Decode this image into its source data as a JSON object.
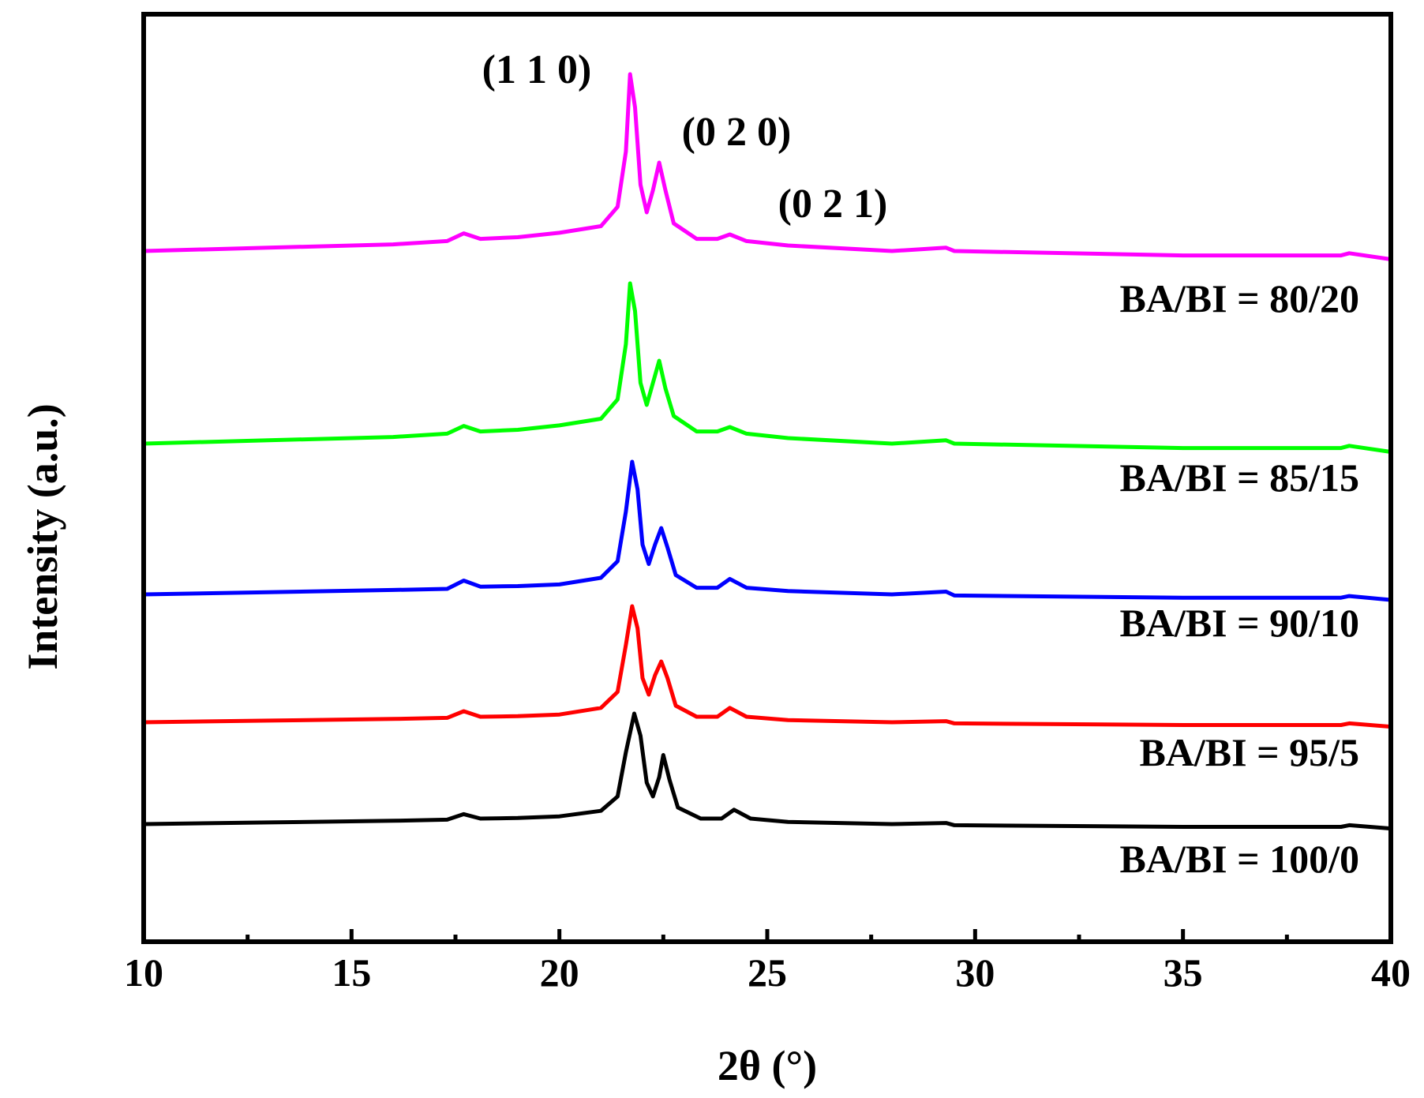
{
  "chart_data": {
    "type": "line",
    "title": "",
    "xlabel": "2θ (°)",
    "ylabel": "Intensity (a.u.)",
    "xlim": [
      10,
      40
    ],
    "xticks": [
      "10",
      "15",
      "20",
      "25",
      "30",
      "35",
      "40"
    ],
    "minor_xticks": [
      12.5,
      17.5,
      22.5,
      27.5,
      32.5,
      37.5
    ],
    "y_ticks_shown": false,
    "grid": false,
    "legend": "none (series labelled inline on the right)",
    "annotations": [
      {
        "text": "(1 1 0)",
        "x": 21.7
      },
      {
        "text": "(0 2 0)",
        "x": 22.4
      },
      {
        "text": "(0 2 1)",
        "x": 24.1
      }
    ],
    "series": [
      {
        "name": "BA/BI = 80/20",
        "color": "#ff00ff",
        "points": [
          [
            10,
            0.0
          ],
          [
            13,
            0.06
          ],
          [
            16,
            0.12
          ],
          [
            17.3,
            0.18
          ],
          [
            17.7,
            0.32
          ],
          [
            18.1,
            0.22
          ],
          [
            19,
            0.25
          ],
          [
            20,
            0.33
          ],
          [
            21,
            0.45
          ],
          [
            21.4,
            0.8
          ],
          [
            21.6,
            1.8
          ],
          [
            21.7,
            3.2
          ],
          [
            21.82,
            2.6
          ],
          [
            21.95,
            1.2
          ],
          [
            22.1,
            0.7
          ],
          [
            22.25,
            1.1
          ],
          [
            22.4,
            1.6
          ],
          [
            22.55,
            1.1
          ],
          [
            22.75,
            0.5
          ],
          [
            23.3,
            0.22
          ],
          [
            23.8,
            0.22
          ],
          [
            24.1,
            0.3
          ],
          [
            24.5,
            0.18
          ],
          [
            25.5,
            0.1
          ],
          [
            28,
            0.0
          ],
          [
            29.3,
            0.06
          ],
          [
            29.5,
            0.0
          ],
          [
            35,
            -0.08
          ],
          [
            38.8,
            -0.08
          ],
          [
            39,
            -0.04
          ],
          [
            40,
            -0.15
          ]
        ]
      },
      {
        "name": "BA/BI = 85/15",
        "color": "#00ff00",
        "points": [
          [
            10,
            0.0
          ],
          [
            13,
            0.06
          ],
          [
            16,
            0.12
          ],
          [
            17.3,
            0.18
          ],
          [
            17.7,
            0.32
          ],
          [
            18.1,
            0.22
          ],
          [
            19,
            0.25
          ],
          [
            20,
            0.33
          ],
          [
            21,
            0.45
          ],
          [
            21.4,
            0.8
          ],
          [
            21.6,
            1.8
          ],
          [
            21.7,
            2.9
          ],
          [
            21.82,
            2.4
          ],
          [
            21.95,
            1.1
          ],
          [
            22.1,
            0.7
          ],
          [
            22.25,
            1.1
          ],
          [
            22.4,
            1.5
          ],
          [
            22.55,
            1.0
          ],
          [
            22.75,
            0.5
          ],
          [
            23.3,
            0.22
          ],
          [
            23.8,
            0.22
          ],
          [
            24.1,
            0.3
          ],
          [
            24.5,
            0.18
          ],
          [
            25.5,
            0.1
          ],
          [
            28,
            0.0
          ],
          [
            29.3,
            0.06
          ],
          [
            29.5,
            0.0
          ],
          [
            35,
            -0.08
          ],
          [
            38.8,
            -0.08
          ],
          [
            39,
            -0.04
          ],
          [
            40,
            -0.15
          ]
        ]
      },
      {
        "name": "BA/BI = 90/10",
        "color": "#0000ff",
        "points": [
          [
            10,
            0.0
          ],
          [
            13,
            0.04
          ],
          [
            16,
            0.08
          ],
          [
            17.3,
            0.1
          ],
          [
            17.7,
            0.25
          ],
          [
            18.1,
            0.14
          ],
          [
            19,
            0.15
          ],
          [
            20,
            0.18
          ],
          [
            21,
            0.3
          ],
          [
            21.4,
            0.6
          ],
          [
            21.6,
            1.5
          ],
          [
            21.75,
            2.4
          ],
          [
            21.88,
            1.9
          ],
          [
            22.0,
            0.9
          ],
          [
            22.15,
            0.55
          ],
          [
            22.3,
            0.9
          ],
          [
            22.45,
            1.2
          ],
          [
            22.6,
            0.85
          ],
          [
            22.8,
            0.35
          ],
          [
            23.3,
            0.12
          ],
          [
            23.8,
            0.12
          ],
          [
            24.1,
            0.28
          ],
          [
            24.5,
            0.12
          ],
          [
            25.5,
            0.06
          ],
          [
            28,
            0.0
          ],
          [
            29.3,
            0.05
          ],
          [
            29.5,
            -0.02
          ],
          [
            35,
            -0.06
          ],
          [
            38.8,
            -0.06
          ],
          [
            39,
            -0.03
          ],
          [
            40,
            -0.1
          ]
        ]
      },
      {
        "name": "BA/BI = 95/5",
        "color": "#ff0000",
        "points": [
          [
            10,
            0.0
          ],
          [
            13,
            0.03
          ],
          [
            16,
            0.06
          ],
          [
            17.3,
            0.08
          ],
          [
            17.7,
            0.2
          ],
          [
            18.1,
            0.1
          ],
          [
            19,
            0.11
          ],
          [
            20,
            0.14
          ],
          [
            21,
            0.26
          ],
          [
            21.4,
            0.55
          ],
          [
            21.6,
            1.4
          ],
          [
            21.75,
            2.1
          ],
          [
            21.88,
            1.7
          ],
          [
            22.0,
            0.8
          ],
          [
            22.15,
            0.5
          ],
          [
            22.3,
            0.85
          ],
          [
            22.45,
            1.1
          ],
          [
            22.6,
            0.8
          ],
          [
            22.8,
            0.3
          ],
          [
            23.3,
            0.1
          ],
          [
            23.8,
            0.1
          ],
          [
            24.1,
            0.26
          ],
          [
            24.5,
            0.1
          ],
          [
            25.5,
            0.04
          ],
          [
            28,
            0.0
          ],
          [
            29.3,
            0.02
          ],
          [
            29.5,
            -0.02
          ],
          [
            35,
            -0.05
          ],
          [
            38.8,
            -0.05
          ],
          [
            39,
            -0.02
          ],
          [
            40,
            -0.08
          ]
        ]
      },
      {
        "name": "BA/BI = 100/0",
        "color": "#000000",
        "points": [
          [
            10,
            0.0
          ],
          [
            13,
            0.03
          ],
          [
            16,
            0.06
          ],
          [
            17.3,
            0.08
          ],
          [
            17.7,
            0.18
          ],
          [
            18.1,
            0.1
          ],
          [
            19,
            0.11
          ],
          [
            20,
            0.14
          ],
          [
            21,
            0.24
          ],
          [
            21.4,
            0.5
          ],
          [
            21.6,
            1.3
          ],
          [
            21.8,
            2.0
          ],
          [
            21.95,
            1.6
          ],
          [
            22.1,
            0.75
          ],
          [
            22.25,
            0.5
          ],
          [
            22.4,
            0.85
          ],
          [
            22.5,
            1.25
          ],
          [
            22.65,
            0.8
          ],
          [
            22.85,
            0.3
          ],
          [
            23.4,
            0.1
          ],
          [
            23.9,
            0.1
          ],
          [
            24.2,
            0.26
          ],
          [
            24.6,
            0.1
          ],
          [
            25.5,
            0.04
          ],
          [
            28,
            0.0
          ],
          [
            29.3,
            0.02
          ],
          [
            29.5,
            -0.02
          ],
          [
            35,
            -0.05
          ],
          [
            38.8,
            -0.05
          ],
          [
            39,
            -0.02
          ],
          [
            40,
            -0.08
          ]
        ]
      }
    ]
  }
}
